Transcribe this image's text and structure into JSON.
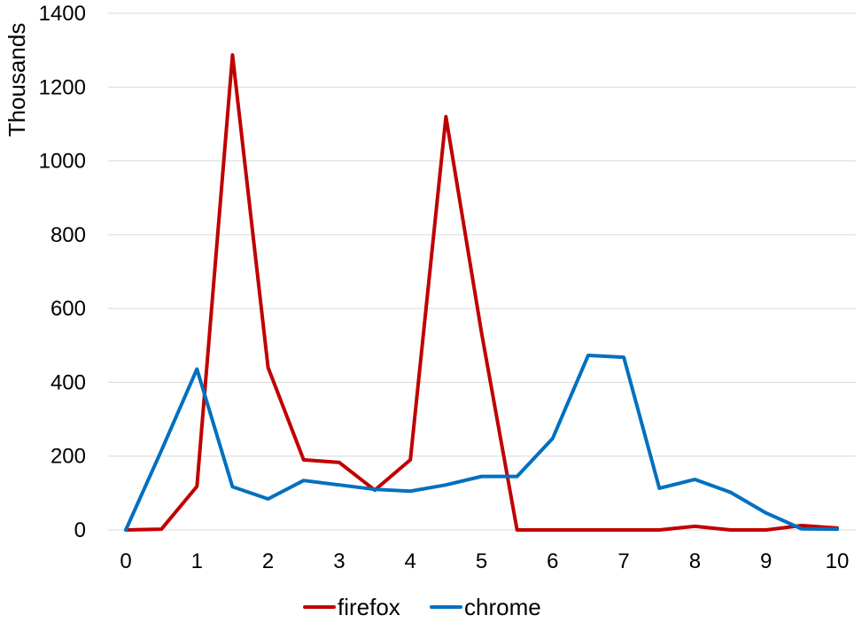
{
  "chart_data": {
    "type": "line",
    "title": "",
    "xlabel": "",
    "ylabel": "Thousands",
    "xlim": [
      0,
      10
    ],
    "ylim": [
      0,
      1400
    ],
    "x_ticks": [
      0,
      1,
      2,
      3,
      4,
      5,
      6,
      7,
      8,
      9,
      10
    ],
    "y_ticks": [
      0,
      200,
      400,
      600,
      800,
      1000,
      1200,
      1400
    ],
    "grid": "horizontal",
    "legend": "bottom",
    "x": [
      0,
      0.5,
      1,
      1.5,
      2,
      2.5,
      3,
      3.5,
      4,
      4.5,
      5,
      5.5,
      6,
      6.5,
      7,
      7.5,
      8,
      8.5,
      9,
      9.5,
      10
    ],
    "series": [
      {
        "name": "firefox",
        "color": "#C00000",
        "values": [
          0,
          2,
          118,
          1287,
          440,
          190,
          183,
          108,
          190,
          1120,
          535,
          0,
          0,
          0,
          0,
          0,
          10,
          0,
          0,
          12,
          5
        ]
      },
      {
        "name": "chrome",
        "color": "#0070C0",
        "values": [
          0,
          215,
          436,
          117,
          84,
          134,
          122,
          110,
          105,
          122,
          145,
          145,
          248,
          473,
          468,
          113,
          137,
          102,
          46,
          3,
          2
        ]
      }
    ]
  }
}
